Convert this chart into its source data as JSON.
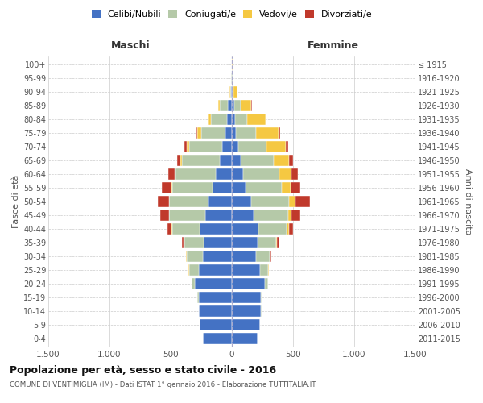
{
  "age_groups": [
    "0-4",
    "5-9",
    "10-14",
    "15-19",
    "20-24",
    "25-29",
    "30-34",
    "35-39",
    "40-44",
    "45-49",
    "50-54",
    "55-59",
    "60-64",
    "65-69",
    "70-74",
    "75-79",
    "80-84",
    "85-89",
    "90-94",
    "95-99",
    "100+"
  ],
  "birth_years": [
    "2011-2015",
    "2006-2010",
    "2001-2005",
    "1996-2000",
    "1991-1995",
    "1986-1990",
    "1981-1985",
    "1976-1980",
    "1971-1975",
    "1966-1970",
    "1961-1965",
    "1956-1960",
    "1951-1955",
    "1946-1950",
    "1941-1945",
    "1936-1940",
    "1931-1935",
    "1926-1930",
    "1921-1925",
    "1916-1920",
    "≤ 1915"
  ],
  "maschi": {
    "celibi": [
      240,
      260,
      270,
      270,
      300,
      270,
      240,
      230,
      260,
      220,
      190,
      160,
      130,
      100,
      80,
      50,
      40,
      30,
      5,
      3,
      2
    ],
    "coniugati": [
      0,
      1,
      2,
      10,
      30,
      80,
      130,
      160,
      230,
      290,
      320,
      330,
      330,
      310,
      270,
      200,
      130,
      70,
      10,
      2,
      1
    ],
    "vedovi": [
      0,
      0,
      0,
      0,
      0,
      2,
      2,
      5,
      5,
      5,
      5,
      5,
      10,
      10,
      20,
      30,
      20,
      10,
      5,
      0,
      0
    ],
    "divorziati": [
      0,
      0,
      0,
      0,
      0,
      5,
      5,
      10,
      30,
      70,
      90,
      80,
      50,
      30,
      15,
      10,
      0,
      0,
      0,
      0,
      0
    ]
  },
  "femmine": {
    "nubili": [
      210,
      230,
      240,
      240,
      270,
      230,
      200,
      210,
      220,
      180,
      160,
      110,
      90,
      70,
      50,
      30,
      25,
      20,
      5,
      3,
      2
    ],
    "coniugate": [
      0,
      0,
      1,
      5,
      25,
      65,
      110,
      150,
      230,
      280,
      310,
      300,
      300,
      270,
      230,
      170,
      100,
      50,
      10,
      2,
      1
    ],
    "vedove": [
      0,
      0,
      0,
      0,
      2,
      5,
      5,
      10,
      15,
      30,
      50,
      70,
      100,
      130,
      160,
      180,
      150,
      90,
      30,
      5,
      1
    ],
    "divorziate": [
      0,
      0,
      0,
      0,
      0,
      5,
      10,
      20,
      35,
      70,
      120,
      80,
      50,
      30,
      20,
      15,
      10,
      5,
      0,
      0,
      0
    ]
  },
  "colors": {
    "celibi": "#4472C4",
    "coniugati": "#B5C9A8",
    "vedovi": "#F5C842",
    "divorziati": "#C0392B"
  },
  "legend_labels": [
    "Celibi/Nubili",
    "Coniugati/e",
    "Vedovi/e",
    "Divorziati/e"
  ],
  "title": "Popolazione per età, sesso e stato civile - 2016",
  "subtitle": "COMUNE DI VENTIMIGLIA (IM) - Dati ISTAT 1° gennaio 2016 - Elaborazione TUTTITALIA.IT",
  "ylabel_left": "Fasce di età",
  "ylabel_right": "Anni di nascita",
  "header_left": "Maschi",
  "header_right": "Femmine",
  "xlim": 1500,
  "xtick_vals": [
    -1500,
    -1000,
    -500,
    0,
    500,
    1000,
    1500
  ],
  "xtick_labels": [
    "1.500",
    "1.000",
    "500",
    "0",
    "500",
    "1.000",
    "1.500"
  ],
  "background_color": "#ffffff",
  "grid_color": "#cccccc",
  "bar_height": 0.82
}
